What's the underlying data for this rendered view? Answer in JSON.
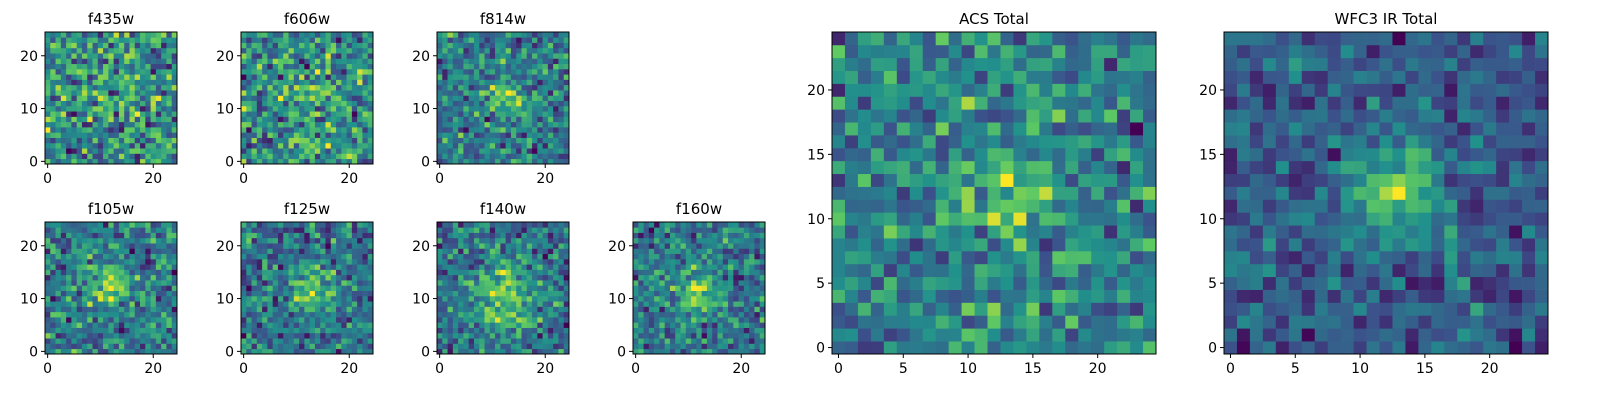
{
  "chart_data": {
    "type": "heatmap",
    "colormap": "viridis",
    "colormap_stops": [
      "#440154",
      "#3b528b",
      "#21918c",
      "#5ec962",
      "#fde725"
    ],
    "grid": false,
    "panels": [
      {
        "id": "f435w",
        "title": "f435w",
        "shape": [
          25,
          25
        ],
        "xlim": [
          -0.5,
          24.5
        ],
        "ylim": [
          -0.5,
          24.5
        ],
        "xticks": [
          0,
          20
        ],
        "yticks": [
          0,
          10,
          20
        ],
        "source_center": [
          12,
          12
        ],
        "source_sigma": 4,
        "source_peak": 0.1,
        "noise_level": 0.8,
        "seed": 435
      },
      {
        "id": "f606w",
        "title": "f606w",
        "shape": [
          25,
          25
        ],
        "xlim": [
          -0.5,
          24.5
        ],
        "ylim": [
          -0.5,
          24.5
        ],
        "xticks": [
          0,
          20
        ],
        "yticks": [
          0,
          10,
          20
        ],
        "source_center": [
          12,
          12
        ],
        "source_sigma": 4,
        "source_peak": 0.1,
        "noise_level": 0.8,
        "seed": 606
      },
      {
        "id": "f814w",
        "title": "f814w",
        "shape": [
          25,
          25
        ],
        "xlim": [
          -0.5,
          24.5
        ],
        "ylim": [
          -0.5,
          24.5
        ],
        "xticks": [
          0,
          20
        ],
        "yticks": [
          0,
          10,
          20
        ],
        "source_center": [
          12,
          12
        ],
        "source_sigma": 2.5,
        "source_peak": 0.35,
        "noise_level": 0.7,
        "seed": 814
      },
      {
        "id": "f105w",
        "title": "f105w",
        "shape": [
          25,
          25
        ],
        "xlim": [
          -0.5,
          24.5
        ],
        "ylim": [
          -0.5,
          24.5
        ],
        "xticks": [
          0,
          20
        ],
        "yticks": [
          0,
          10,
          20
        ],
        "source_center": [
          12,
          12
        ],
        "source_sigma": 2.5,
        "source_peak": 0.45,
        "noise_level": 0.6,
        "seed": 105
      },
      {
        "id": "f125w",
        "title": "f125w",
        "shape": [
          25,
          25
        ],
        "xlim": [
          -0.5,
          24.5
        ],
        "ylim": [
          -0.5,
          24.5
        ],
        "xticks": [
          0,
          20
        ],
        "yticks": [
          0,
          10,
          20
        ],
        "source_center": [
          12,
          12
        ],
        "source_sigma": 2.5,
        "source_peak": 0.4,
        "noise_level": 0.6,
        "seed": 125
      },
      {
        "id": "f140w",
        "title": "f140w",
        "shape": [
          25,
          25
        ],
        "xlim": [
          -0.5,
          24.5
        ],
        "ylim": [
          -0.5,
          24.5
        ],
        "xticks": [
          0,
          20
        ],
        "yticks": [
          0,
          10,
          20
        ],
        "source_center": [
          12,
          10
        ],
        "source_sigma": 4.5,
        "source_peak": 0.4,
        "noise_level": 0.55,
        "seed": 140
      },
      {
        "id": "f160w",
        "title": "f160w",
        "shape": [
          25,
          25
        ],
        "xlim": [
          -0.5,
          24.5
        ],
        "ylim": [
          -0.5,
          24.5
        ],
        "xticks": [
          0,
          20
        ],
        "yticks": [
          0,
          10,
          20
        ],
        "source_center": [
          12,
          12
        ],
        "source_sigma": 3,
        "source_peak": 0.4,
        "noise_level": 0.6,
        "seed": 160
      },
      {
        "id": "acs_total",
        "title": "ACS Total",
        "shape": [
          25,
          25
        ],
        "xlim": [
          -0.5,
          24.5
        ],
        "ylim": [
          -0.5,
          24.5
        ],
        "xticks": [
          0,
          5,
          10,
          15,
          20
        ],
        "yticks": [
          0,
          5,
          10,
          15,
          20
        ],
        "source_center": [
          13,
          12
        ],
        "source_sigma": 2.5,
        "source_peak": 0.3,
        "noise_level": 0.55,
        "seed": 2001
      },
      {
        "id": "wfc3_ir_total",
        "title": "WFC3 IR Total",
        "shape": [
          25,
          25
        ],
        "xlim": [
          -0.5,
          24.5
        ],
        "ylim": [
          -0.5,
          24.5
        ],
        "xticks": [
          0,
          5,
          10,
          15,
          20
        ],
        "yticks": [
          0,
          5,
          10,
          15,
          20
        ],
        "source_center": [
          13,
          12
        ],
        "source_sigma": 2.5,
        "source_peak": 0.55,
        "noise_level": 0.45,
        "seed": 3001
      }
    ]
  }
}
